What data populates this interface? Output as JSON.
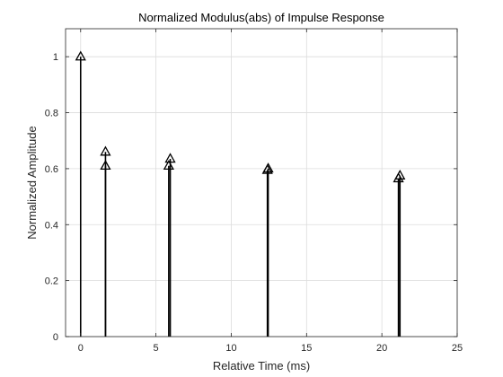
{
  "chart_data": {
    "type": "stem",
    "title": "Normalized Modulus(abs) of Impulse Response",
    "xlabel": "Relative Time (ms)",
    "ylabel": "Normalized Amplitude",
    "xlim": [
      -1,
      25
    ],
    "ylim": [
      0,
      1.1
    ],
    "xticks": [
      0,
      5,
      10,
      15,
      20,
      25
    ],
    "yticks": [
      0,
      0.2,
      0.4,
      0.6,
      0.8,
      1
    ],
    "xtick_labels": [
      "0",
      "5",
      "10",
      "15",
      "20",
      "25"
    ],
    "ytick_labels": [
      "0",
      "0.2",
      "0.4",
      "0.6",
      "0.8",
      "1"
    ],
    "grid": true,
    "marker": "triangle-up",
    "colors": {
      "stem": "#000000",
      "grid": "#dcdcdc",
      "axes": "#262626",
      "background": "#ffffff"
    },
    "series": [
      {
        "x": [
          0,
          1.65,
          1.65,
          5.85,
          5.95,
          12.4,
          12.45,
          21.1,
          21.2
        ],
        "y": [
          1.0,
          0.66,
          0.61,
          0.61,
          0.635,
          0.595,
          0.6,
          0.565,
          0.575
        ]
      }
    ]
  }
}
